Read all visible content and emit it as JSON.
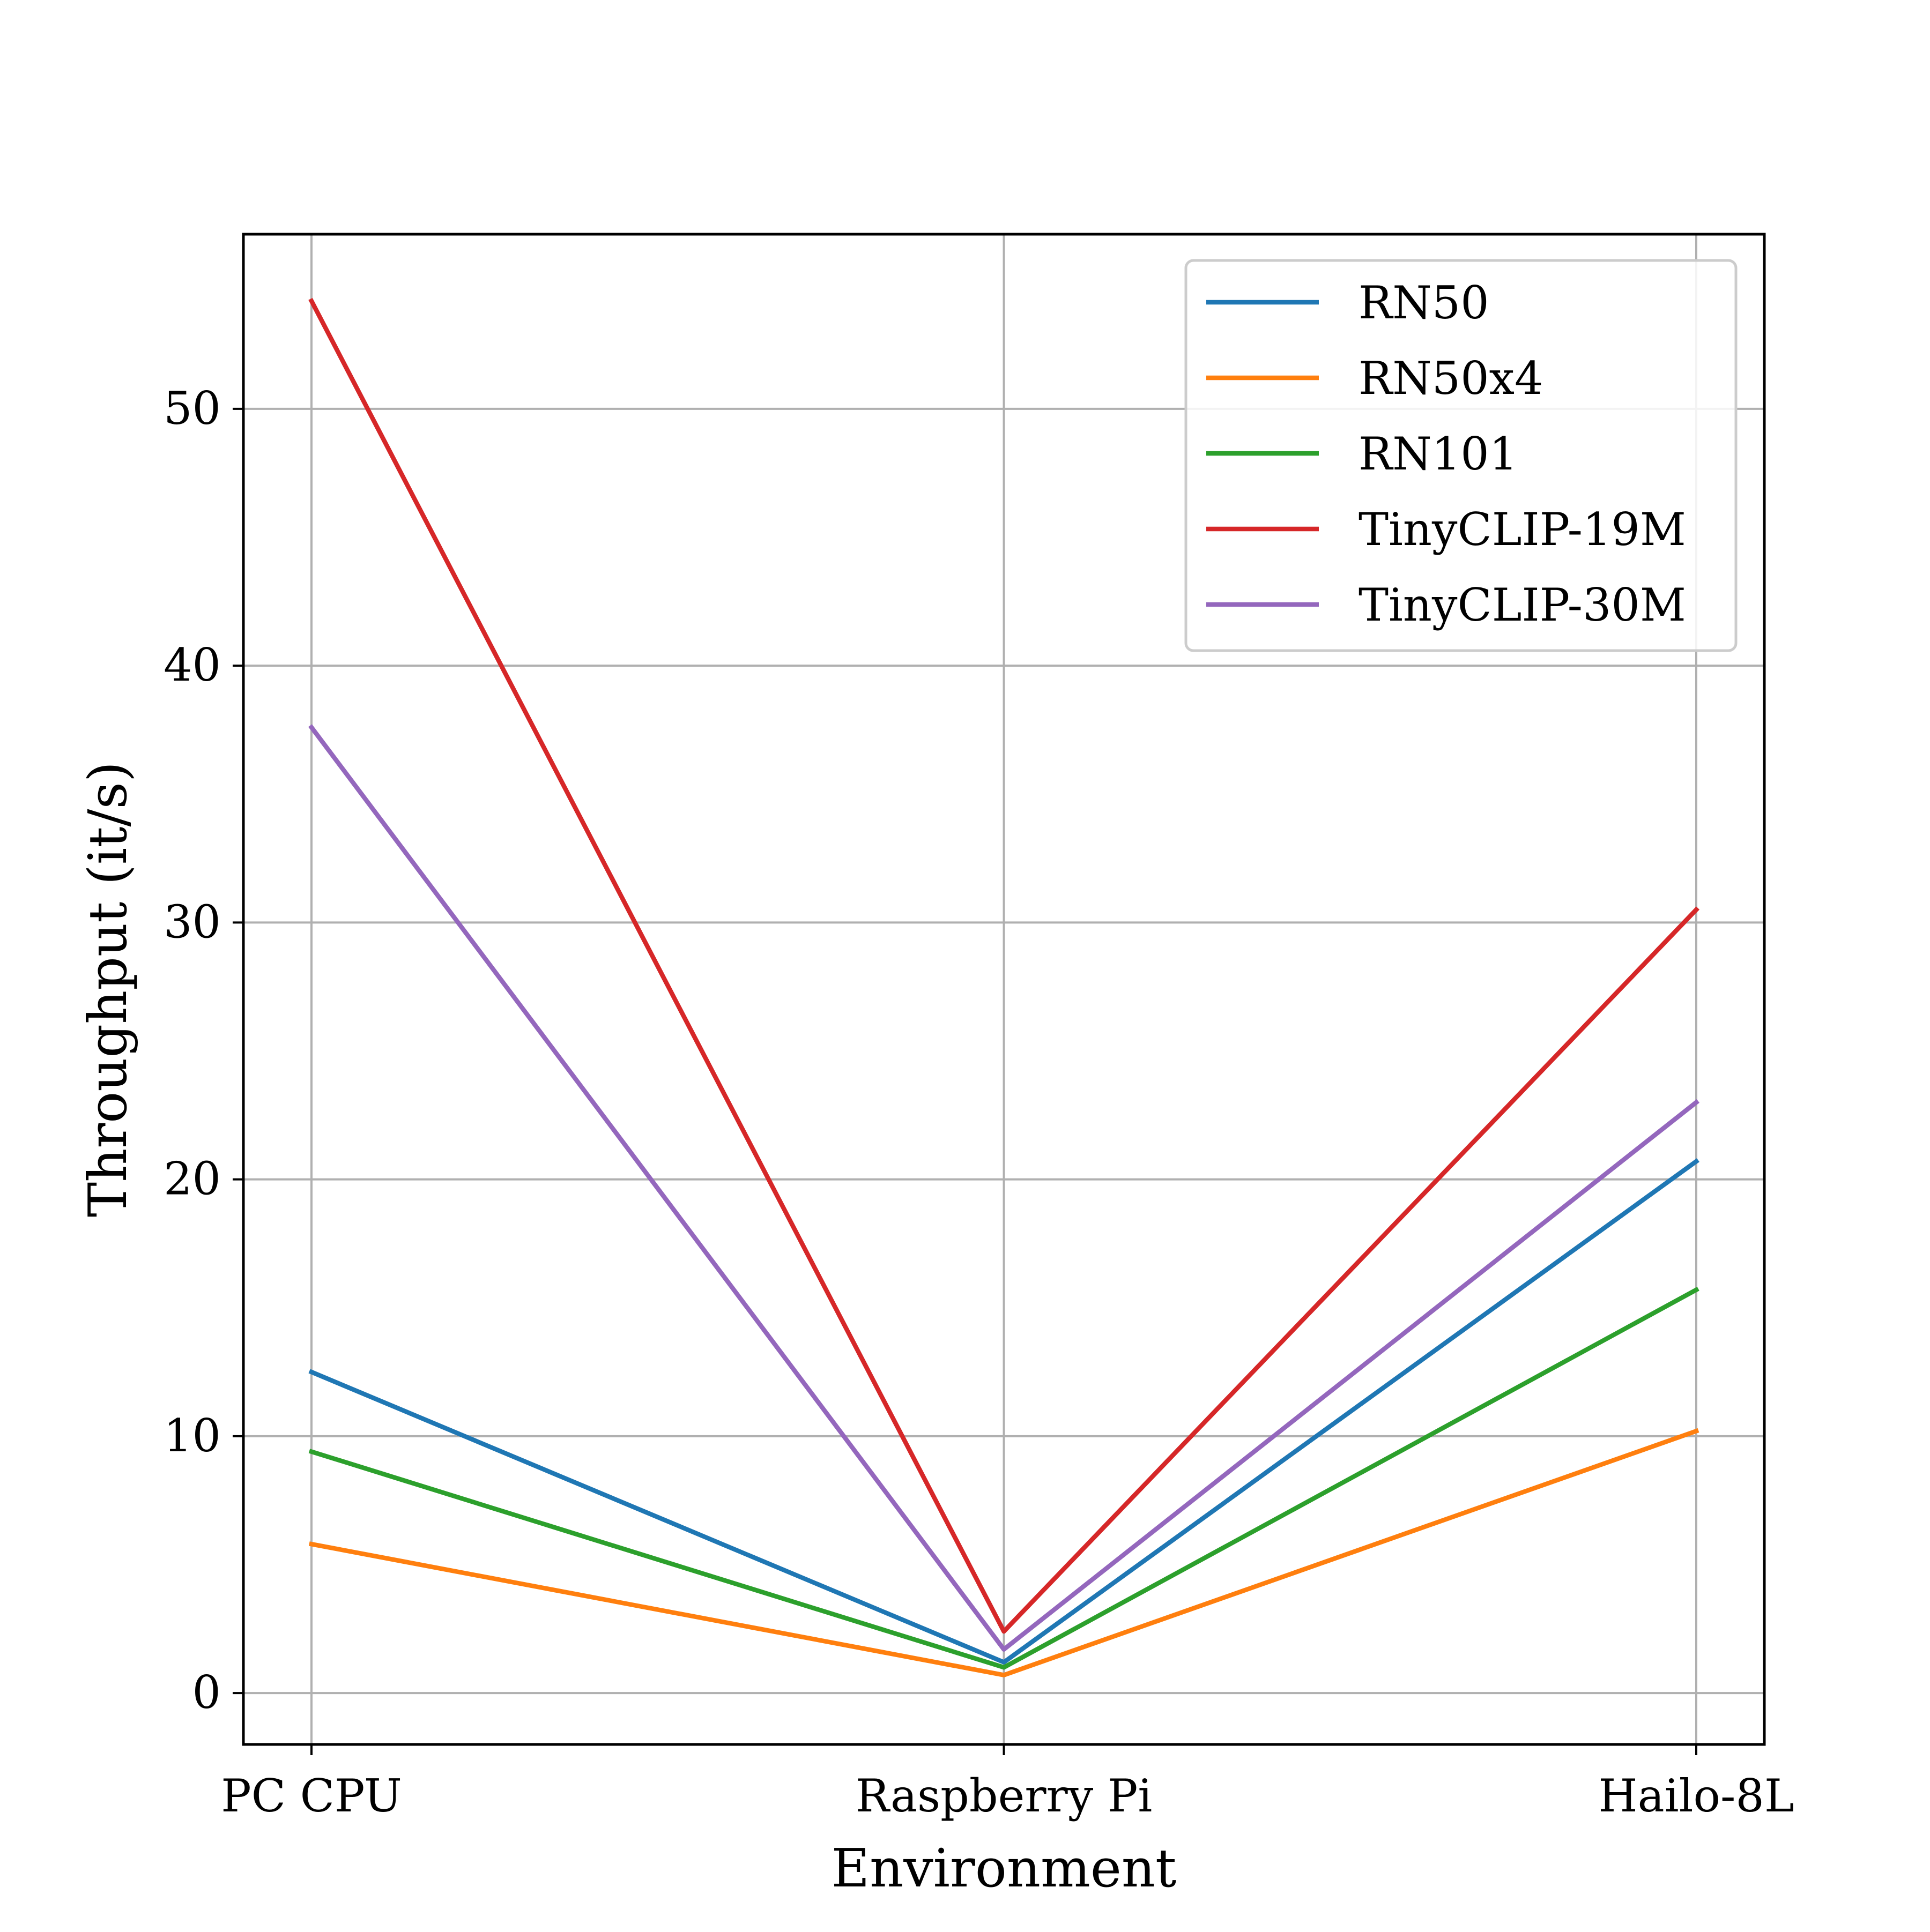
{
  "chart_data": {
    "type": "line",
    "title": "",
    "xlabel": "Environment",
    "ylabel": "Throughput (it/s)",
    "categories": [
      "PC CPU",
      "Raspberry Pi",
      "Hailo-8L"
    ],
    "ylim": [
      -2,
      56.8
    ],
    "yticks": [
      0,
      10,
      20,
      30,
      40,
      50
    ],
    "grid": true,
    "legend_position": "top-right",
    "series": [
      {
        "name": "RN50",
        "color": "#1f77b4",
        "values": [
          12.5,
          1.2,
          20.7
        ]
      },
      {
        "name": "RN50x4",
        "color": "#ff7f0e",
        "values": [
          5.8,
          0.7,
          10.2
        ]
      },
      {
        "name": "RN101",
        "color": "#2ca02c",
        "values": [
          9.4,
          1.0,
          15.7
        ]
      },
      {
        "name": "TinyCLIP-19M",
        "color": "#d62728",
        "values": [
          54.2,
          2.4,
          30.5
        ]
      },
      {
        "name": "TinyCLIP-30M",
        "color": "#9467bd",
        "values": [
          37.6,
          1.7,
          23.0
        ]
      }
    ]
  }
}
